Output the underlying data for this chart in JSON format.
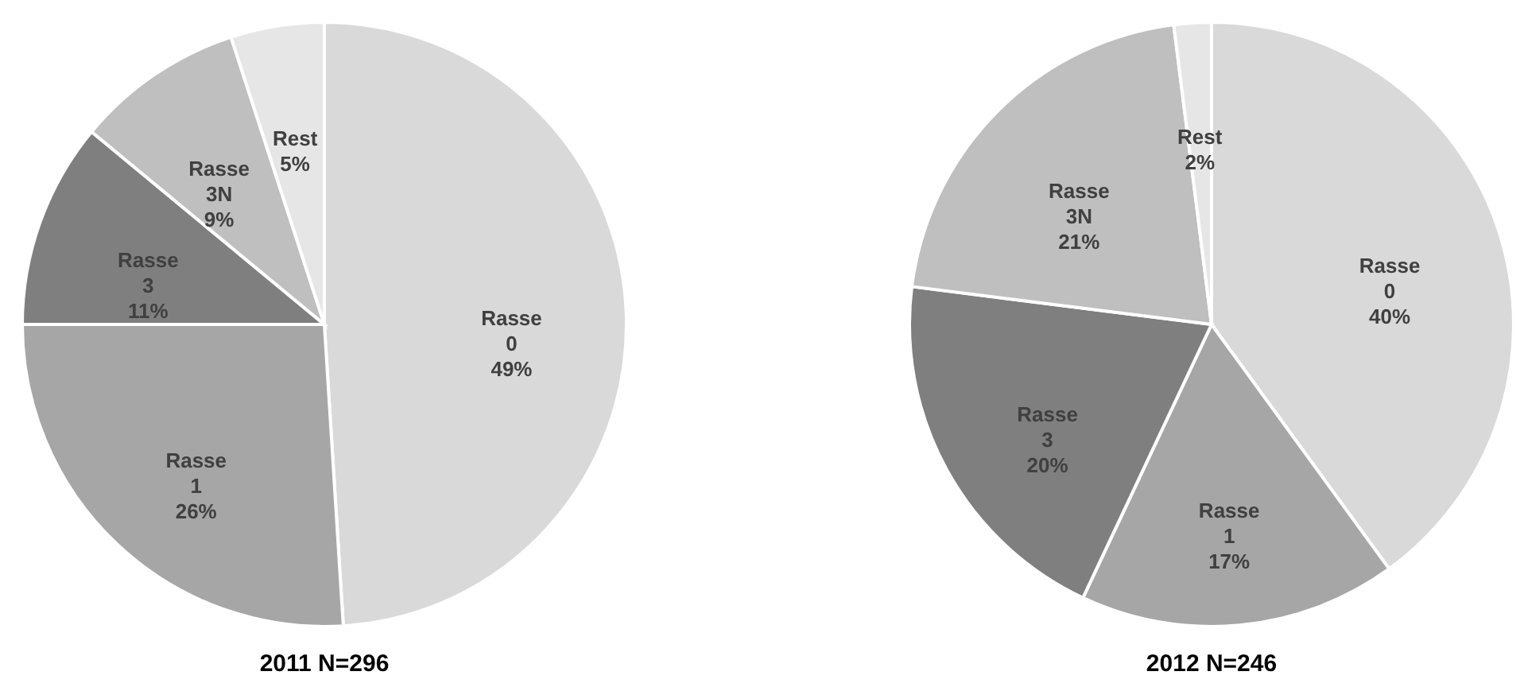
{
  "chart_data": [
    {
      "type": "pie",
      "title": "2011 N=296",
      "categories": [
        "Rasse 0",
        "Rasse 1",
        "Rasse 3",
        "Rasse 3N",
        "Rest"
      ],
      "values": [
        49,
        26,
        11,
        9,
        5
      ],
      "value_labels": [
        "49%",
        "26%",
        "11%",
        "9%",
        "5%"
      ],
      "colors": [
        "#d9d9d9",
        "#a6a6a6",
        "#7f7f7f",
        "#bfbfbf",
        "#e6e6e6"
      ]
    },
    {
      "type": "pie",
      "title": "2012 N=246",
      "categories": [
        "Rasse 0",
        "Rasse 1",
        "Rasse 3",
        "Rasse 3N",
        "Rest"
      ],
      "values": [
        40,
        17,
        20,
        21,
        2
      ],
      "value_labels": [
        "40%",
        "17%",
        "20%",
        "21%",
        "2%"
      ],
      "colors": [
        "#d9d9d9",
        "#a6a6a6",
        "#7f7f7f",
        "#bfbfbf",
        "#e6e6e6"
      ]
    }
  ]
}
